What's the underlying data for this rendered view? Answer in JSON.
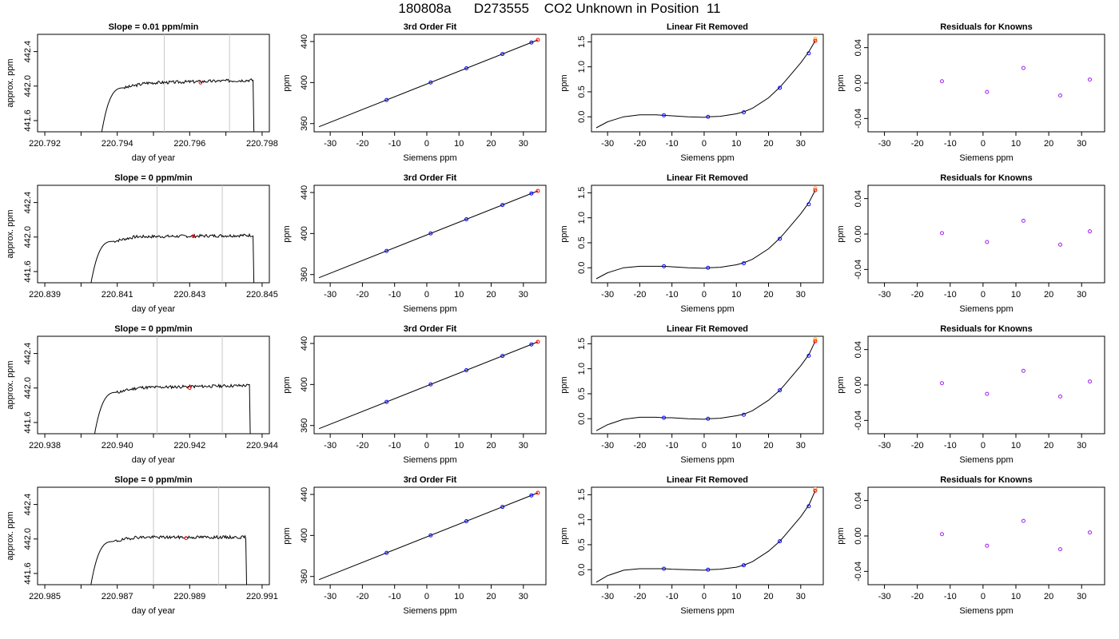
{
  "title": "180808a      D273555    CO2 Unknown in Position  11",
  "colors": {
    "axis": "#000000",
    "grid": "#c8c8c8",
    "known": "#0000ff",
    "unknown": "#ff0000",
    "unknown2": "#ffa500",
    "residual": "#a020f0",
    "line": "#000000"
  },
  "chart_data": [
    {
      "type": "line",
      "panel": "trace",
      "row": 0,
      "title": "Slope =  0.01  ppm/min",
      "xlabel": "day of year",
      "ylabel": "approx. ppm",
      "xlim": [
        220.7918,
        220.7982
      ],
      "ylim": [
        441.47,
        442.6
      ],
      "xticks": [
        220.792,
        220.794,
        220.796,
        220.798
      ],
      "xtick_labels": [
        "220.792",
        "220.794",
        "220.796",
        "220.798"
      ],
      "xminor": [
        220.793,
        220.795,
        220.797
      ],
      "yticks": [
        441.6,
        442.0,
        442.4
      ],
      "ytick_labels": [
        "441.6",
        "442.0",
        "442.4"
      ],
      "window": [
        220.7953,
        220.7971
      ],
      "marker": {
        "x": 220.7963,
        "y": 442.04
      },
      "trace": {
        "start": 220.7935,
        "rise_end": 220.7942,
        "plateau": 442.03,
        "end": 220.79775,
        "drift": 0.04,
        "seed": 3
      }
    },
    {
      "type": "line",
      "panel": "fit",
      "row": 0,
      "title": "3rd Order Fit",
      "xlabel": "Siemens ppm",
      "ylabel": "ppm",
      "xlim": [
        -35,
        37
      ],
      "ylim": [
        352,
        447
      ],
      "xticks": [
        -30,
        -20,
        -10,
        0,
        10,
        20,
        30
      ],
      "yticks": [
        360,
        400,
        440
      ],
      "x_line": [
        -33.5,
        34.5
      ],
      "intercept": 398.6,
      "slope": 1.245,
      "knowns_x": [
        -12.5,
        1.2,
        12.3,
        23.5,
        32.5
      ],
      "unknown_x": 34.5
    },
    {
      "type": "line",
      "panel": "linrem",
      "row": 0,
      "title": "Linear Fit Removed",
      "xlabel": "Siemens ppm",
      "ylabel": "ppm",
      "xlim": [
        -35,
        37
      ],
      "ylim": [
        -0.3,
        1.65
      ],
      "xticks": [
        -30,
        -20,
        -10,
        0,
        10,
        20,
        30
      ],
      "yticks": [
        0,
        0.5,
        1,
        1.5
      ],
      "ytick_labels": [
        "0.0",
        "0.5",
        "1.0",
        "1.5"
      ],
      "curve_x": [
        -33.5,
        -30,
        -25,
        -20,
        -15,
        -12.5,
        -10,
        -5,
        0,
        1.2,
        5,
        10,
        12.3,
        15,
        20,
        23.5,
        25,
        30,
        32.5,
        34.5
      ],
      "curve_y": [
        -0.22,
        -0.1,
        0.0,
        0.04,
        0.04,
        0.03,
        0.02,
        0.0,
        -0.01,
        0.0,
        0.01,
        0.06,
        0.1,
        0.17,
        0.38,
        0.59,
        0.7,
        1.08,
        1.3,
        1.52
      ],
      "knowns": [
        [
          -12.5,
          0.03
        ],
        [
          1.2,
          0.0
        ],
        [
          12.3,
          0.09
        ],
        [
          23.5,
          0.58
        ],
        [
          32.5,
          1.27
        ]
      ],
      "unknown": [
        34.5,
        1.52
      ]
    },
    {
      "type": "scatter",
      "panel": "resid",
      "row": 0,
      "title": "Residuals for Knowns",
      "xlabel": "Siemens ppm",
      "ylabel": "ppm",
      "xlim": [
        -35,
        37
      ],
      "ylim": [
        -0.055,
        0.055
      ],
      "xticks": [
        -30,
        -20,
        -10,
        0,
        10,
        20,
        30
      ],
      "yticks": [
        -0.04,
        0,
        0.04
      ],
      "ytick_labels": [
        "-0.04",
        "0.00",
        "0.04"
      ],
      "points": [
        [
          -12.5,
          0.002
        ],
        [
          1.2,
          -0.01
        ],
        [
          12.3,
          0.017
        ],
        [
          23.5,
          -0.014
        ],
        [
          32.5,
          0.004
        ]
      ]
    },
    {
      "type": "line",
      "panel": "trace",
      "row": 1,
      "title": "Slope =  0  ppm/min",
      "xlabel": "day of year",
      "ylabel": "approx. ppm",
      "xlim": [
        220.8388,
        220.8452
      ],
      "ylim": [
        441.47,
        442.6
      ],
      "xticks": [
        220.839,
        220.841,
        220.843,
        220.845
      ],
      "xtick_labels": [
        "220.839",
        "220.841",
        "220.843",
        "220.845"
      ],
      "xminor": [
        220.84,
        220.842,
        220.844
      ],
      "yticks": [
        441.6,
        442.0,
        442.4
      ],
      "ytick_labels": [
        "441.6",
        "442.0",
        "442.4"
      ],
      "window": [
        220.8421,
        220.8439
      ],
      "marker": {
        "x": 220.8431,
        "y": 442.01
      },
      "trace": {
        "start": 220.8402,
        "rise_end": 220.8409,
        "plateau": 442.0,
        "end": 220.84475,
        "drift": 0.02,
        "seed": 7
      }
    },
    {
      "type": "line",
      "panel": "fit",
      "row": 1,
      "title": "3rd Order Fit",
      "xlabel": "Siemens ppm",
      "ylabel": "ppm",
      "xlim": [
        -35,
        37
      ],
      "ylim": [
        352,
        447
      ],
      "xticks": [
        -30,
        -20,
        -10,
        0,
        10,
        20,
        30
      ],
      "yticks": [
        360,
        400,
        440
      ],
      "x_line": [
        -33.5,
        34.5
      ],
      "intercept": 398.6,
      "slope": 1.245,
      "knowns_x": [
        -12.5,
        1.2,
        12.3,
        23.5,
        32.5
      ],
      "unknown_x": 34.5
    },
    {
      "type": "line",
      "panel": "linrem",
      "row": 1,
      "title": "Linear Fit Removed",
      "xlabel": "Siemens ppm",
      "ylabel": "ppm",
      "xlim": [
        -35,
        37
      ],
      "ylim": [
        -0.3,
        1.65
      ],
      "xticks": [
        -30,
        -20,
        -10,
        0,
        10,
        20,
        30
      ],
      "yticks": [
        0,
        0.5,
        1,
        1.5
      ],
      "ytick_labels": [
        "0.0",
        "0.5",
        "1.0",
        "1.5"
      ],
      "curve_x": [
        -33.5,
        -30,
        -25,
        -20,
        -15,
        -12.5,
        -10,
        -5,
        0,
        1.2,
        5,
        10,
        12.3,
        15,
        20,
        23.5,
        25,
        30,
        32.5,
        34.5
      ],
      "curve_y": [
        -0.22,
        -0.1,
        0.0,
        0.03,
        0.03,
        0.03,
        0.02,
        0.0,
        -0.01,
        0.0,
        0.01,
        0.06,
        0.1,
        0.17,
        0.38,
        0.59,
        0.7,
        1.08,
        1.3,
        1.55
      ],
      "knowns": [
        [
          -12.5,
          0.03
        ],
        [
          1.2,
          0.0
        ],
        [
          12.3,
          0.09
        ],
        [
          23.5,
          0.58
        ],
        [
          32.5,
          1.27
        ]
      ],
      "unknown": [
        34.5,
        1.55
      ]
    },
    {
      "type": "scatter",
      "panel": "resid",
      "row": 1,
      "title": "Residuals for Knowns",
      "xlabel": "Siemens ppm",
      "ylabel": "ppm",
      "xlim": [
        -35,
        37
      ],
      "ylim": [
        -0.055,
        0.055
      ],
      "xticks": [
        -30,
        -20,
        -10,
        0,
        10,
        20,
        30
      ],
      "yticks": [
        -0.04,
        0,
        0.04
      ],
      "ytick_labels": [
        "-0.04",
        "0.00",
        "0.04"
      ],
      "points": [
        [
          -12.5,
          0.001
        ],
        [
          1.2,
          -0.009
        ],
        [
          12.3,
          0.015
        ],
        [
          23.5,
          -0.012
        ],
        [
          32.5,
          0.003
        ]
      ]
    },
    {
      "type": "line",
      "panel": "trace",
      "row": 2,
      "title": "Slope =  0  ppm/min",
      "xlabel": "day of year",
      "ylabel": "approx. ppm",
      "xlim": [
        220.9378,
        220.9442
      ],
      "ylim": [
        441.47,
        442.6
      ],
      "xticks": [
        220.938,
        220.94,
        220.942,
        220.944
      ],
      "xtick_labels": [
        "220.938",
        "220.940",
        "220.942",
        "220.944"
      ],
      "xminor": [
        220.939,
        220.941,
        220.943
      ],
      "yticks": [
        441.6,
        442.0,
        442.4
      ],
      "ytick_labels": [
        "441.6",
        "442.0",
        "442.4"
      ],
      "window": [
        220.9411,
        220.9429
      ],
      "marker": {
        "x": 220.942,
        "y": 442.0
      },
      "trace": {
        "start": 220.9393,
        "rise_end": 220.94,
        "plateau": 442.0,
        "end": 220.94365,
        "drift": 0.03,
        "seed": 11
      }
    },
    {
      "type": "line",
      "panel": "fit",
      "row": 2,
      "title": "3rd Order Fit",
      "xlabel": "Siemens ppm",
      "ylabel": "ppm",
      "xlim": [
        -35,
        37
      ],
      "ylim": [
        352,
        447
      ],
      "xticks": [
        -30,
        -20,
        -10,
        0,
        10,
        20,
        30
      ],
      "yticks": [
        360,
        400,
        440
      ],
      "x_line": [
        -33.5,
        34.5
      ],
      "intercept": 398.6,
      "slope": 1.245,
      "knowns_x": [
        -12.5,
        1.2,
        12.3,
        23.5,
        32.5
      ],
      "unknown_x": 34.5
    },
    {
      "type": "line",
      "panel": "linrem",
      "row": 2,
      "title": "Linear Fit Removed",
      "xlabel": "Siemens ppm",
      "ylabel": "ppm",
      "xlim": [
        -35,
        37
      ],
      "ylim": [
        -0.3,
        1.65
      ],
      "xticks": [
        -30,
        -20,
        -10,
        0,
        10,
        20,
        30
      ],
      "yticks": [
        0,
        0.5,
        1,
        1.5
      ],
      "ytick_labels": [
        "0.0",
        "0.5",
        "1.0",
        "1.5"
      ],
      "curve_x": [
        -33.5,
        -30,
        -25,
        -20,
        -15,
        -12.5,
        -10,
        -5,
        0,
        1.2,
        5,
        10,
        12.3,
        15,
        20,
        23.5,
        25,
        30,
        32.5,
        34.5
      ],
      "curve_y": [
        -0.24,
        -0.12,
        -0.01,
        0.03,
        0.03,
        0.02,
        0.02,
        0.0,
        -0.01,
        0.0,
        0.01,
        0.06,
        0.09,
        0.16,
        0.37,
        0.57,
        0.68,
        1.06,
        1.28,
        1.55
      ],
      "knowns": [
        [
          -12.5,
          0.02
        ],
        [
          1.2,
          0.0
        ],
        [
          12.3,
          0.08
        ],
        [
          23.5,
          0.57
        ],
        [
          32.5,
          1.26
        ]
      ],
      "unknown": [
        34.5,
        1.55
      ]
    },
    {
      "type": "scatter",
      "panel": "resid",
      "row": 2,
      "title": "Residuals for Knowns",
      "xlabel": "Siemens ppm",
      "ylabel": "ppm",
      "xlim": [
        -35,
        37
      ],
      "ylim": [
        -0.055,
        0.055
      ],
      "xticks": [
        -30,
        -20,
        -10,
        0,
        10,
        20,
        30
      ],
      "yticks": [
        -0.04,
        0,
        0.04
      ],
      "ytick_labels": [
        "-0.04",
        "0.00",
        "0.04"
      ],
      "points": [
        [
          -12.5,
          0.002
        ],
        [
          1.2,
          -0.01
        ],
        [
          12.3,
          0.016
        ],
        [
          23.5,
          -0.013
        ],
        [
          32.5,
          0.004
        ]
      ]
    },
    {
      "type": "line",
      "panel": "trace",
      "row": 3,
      "title": "Slope =  0  ppm/min",
      "xlabel": "day of year",
      "ylabel": "approx. ppm",
      "xlim": [
        220.9848,
        220.9912
      ],
      "ylim": [
        441.47,
        442.6
      ],
      "xticks": [
        220.985,
        220.987,
        220.989,
        220.991
      ],
      "xtick_labels": [
        "220.985",
        "220.987",
        "220.989",
        "220.991"
      ],
      "xminor": [
        220.986,
        220.988,
        220.99
      ],
      "yticks": [
        441.6,
        442.0,
        442.4
      ],
      "ytick_labels": [
        "441.6",
        "442.0",
        "442.4"
      ],
      "window": [
        220.988,
        220.9898
      ],
      "marker": {
        "x": 220.9889,
        "y": 442.01
      },
      "trace": {
        "start": 220.9862,
        "rise_end": 220.9869,
        "plateau": 442.02,
        "end": 220.99055,
        "drift": 0.0,
        "seed": 19
      }
    },
    {
      "type": "line",
      "panel": "fit",
      "row": 3,
      "title": "3rd Order Fit",
      "xlabel": "Siemens ppm",
      "ylabel": "ppm",
      "xlim": [
        -35,
        37
      ],
      "ylim": [
        352,
        447
      ],
      "xticks": [
        -30,
        -20,
        -10,
        0,
        10,
        20,
        30
      ],
      "yticks": [
        360,
        400,
        440
      ],
      "x_line": [
        -33.5,
        34.5
      ],
      "intercept": 398.6,
      "slope": 1.245,
      "knowns_x": [
        -12.5,
        1.2,
        12.3,
        23.5,
        32.5
      ],
      "unknown_x": 34.5
    },
    {
      "type": "line",
      "panel": "linrem",
      "row": 3,
      "title": "Linear Fit Removed",
      "xlabel": "Siemens ppm",
      "ylabel": "ppm",
      "xlim": [
        -35,
        37
      ],
      "ylim": [
        -0.3,
        1.65
      ],
      "xticks": [
        -30,
        -20,
        -10,
        0,
        10,
        20,
        30
      ],
      "yticks": [
        0,
        0.5,
        1,
        1.5
      ],
      "ytick_labels": [
        "0.0",
        "0.5",
        "1.0",
        "1.5"
      ],
      "curve_x": [
        -33.5,
        -30,
        -25,
        -20,
        -15,
        -12.5,
        -10,
        -5,
        0,
        1.2,
        5,
        10,
        12.3,
        15,
        20,
        23.5,
        25,
        30,
        32.5,
        34.5
      ],
      "curve_y": [
        -0.25,
        -0.12,
        -0.01,
        0.02,
        0.02,
        0.02,
        0.01,
        0.0,
        -0.01,
        0.0,
        0.01,
        0.05,
        0.09,
        0.16,
        0.37,
        0.57,
        0.68,
        1.06,
        1.29,
        1.58
      ],
      "knowns": [
        [
          -12.5,
          0.02
        ],
        [
          1.2,
          0.0
        ],
        [
          12.3,
          0.09
        ],
        [
          23.5,
          0.57
        ],
        [
          32.5,
          1.27
        ]
      ],
      "unknown": [
        34.5,
        1.58
      ]
    },
    {
      "type": "scatter",
      "panel": "resid",
      "row": 3,
      "title": "Residuals for Knowns",
      "xlabel": "Siemens ppm",
      "ylabel": "ppm",
      "xlim": [
        -35,
        37
      ],
      "ylim": [
        -0.055,
        0.055
      ],
      "xticks": [
        -30,
        -20,
        -10,
        0,
        10,
        20,
        30
      ],
      "yticks": [
        -0.04,
        0,
        0.04
      ],
      "ytick_labels": [
        "-0.04",
        "0.00",
        "0.04"
      ],
      "points": [
        [
          -12.5,
          0.002
        ],
        [
          1.2,
          -0.011
        ],
        [
          12.3,
          0.017
        ],
        [
          23.5,
          -0.015
        ],
        [
          32.5,
          0.004
        ]
      ]
    }
  ]
}
